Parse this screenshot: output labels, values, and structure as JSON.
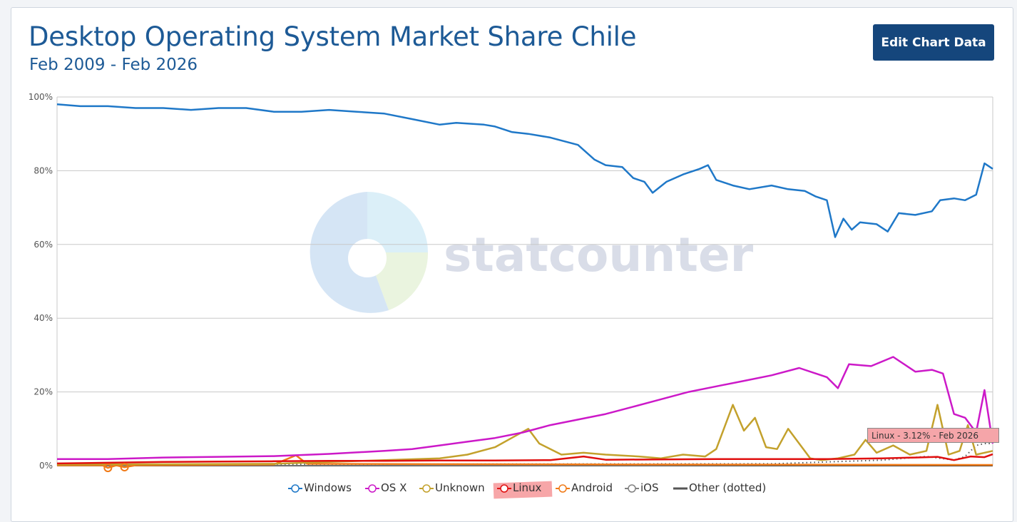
{
  "header": {
    "title": "Desktop Operating System Market Share Chile",
    "subtitle": "Feb 2009 - Feb 2026",
    "edit_button_label": "Edit Chart Data"
  },
  "watermark": {
    "text": "statcounter"
  },
  "tooltip": {
    "text": "Linux - 3.12% - Feb 2026",
    "series": "Linux"
  },
  "colors": {
    "Windows": "#1f78c8",
    "OS X": "#cc19c8",
    "Unknown": "#c3a12c",
    "Linux": "#e01010",
    "Android": "#f07a17",
    "iOS": "#808080",
    "Other (dotted)": "#555555",
    "title": "#1d5a96",
    "button": "#15467c",
    "highlight": "#f5a5a9"
  },
  "chart_data": {
    "type": "line",
    "title": "Desktop Operating System Market Share Chile",
    "subtitle": "Feb 2009 - Feb 2026",
    "ylim": [
      0,
      100
    ],
    "y_ticks": [
      "0%",
      "20%",
      "40%",
      "60%",
      "80%",
      "100%"
    ],
    "x_range": [
      "2009-02",
      "2026-02"
    ],
    "grid": true,
    "legend_position": "bottom",
    "series": [
      {
        "name": "Windows",
        "points": [
          [
            2009.08,
            98
          ],
          [
            2009.5,
            97.5
          ],
          [
            2010,
            97.5
          ],
          [
            2010.5,
            97
          ],
          [
            2011,
            97
          ],
          [
            2011.5,
            96.5
          ],
          [
            2012,
            97
          ],
          [
            2012.5,
            97
          ],
          [
            2013,
            96
          ],
          [
            2013.5,
            96
          ],
          [
            2014,
            96.5
          ],
          [
            2014.5,
            96
          ],
          [
            2015,
            95.5
          ],
          [
            2015.5,
            94
          ],
          [
            2016,
            92.5
          ],
          [
            2016.3,
            93
          ],
          [
            2016.8,
            92.5
          ],
          [
            2017,
            92
          ],
          [
            2017.3,
            90.5
          ],
          [
            2017.6,
            90
          ],
          [
            2018,
            89
          ],
          [
            2018.5,
            87
          ],
          [
            2018.8,
            83
          ],
          [
            2019,
            81.5
          ],
          [
            2019.3,
            81
          ],
          [
            2019.5,
            78
          ],
          [
            2019.7,
            77
          ],
          [
            2019.85,
            74
          ],
          [
            2020.1,
            77
          ],
          [
            2020.4,
            79
          ],
          [
            2020.7,
            80.5
          ],
          [
            2020.85,
            81.5
          ],
          [
            2021,
            77.5
          ],
          [
            2021.3,
            76
          ],
          [
            2021.6,
            75
          ],
          [
            2022,
            76
          ],
          [
            2022.3,
            75
          ],
          [
            2022.6,
            74.5
          ],
          [
            2022.8,
            73
          ],
          [
            2023,
            72
          ],
          [
            2023.15,
            62
          ],
          [
            2023.3,
            67
          ],
          [
            2023.45,
            64
          ],
          [
            2023.6,
            66
          ],
          [
            2023.9,
            65.5
          ],
          [
            2024.1,
            63.5
          ],
          [
            2024.3,
            68.5
          ],
          [
            2024.6,
            68
          ],
          [
            2024.9,
            69
          ],
          [
            2025.05,
            72
          ],
          [
            2025.3,
            72.5
          ],
          [
            2025.5,
            72
          ],
          [
            2025.7,
            73.5
          ],
          [
            2025.85,
            82
          ],
          [
            2026.0,
            80.5
          ]
        ]
      },
      {
        "name": "OS X",
        "points": [
          [
            2009.08,
            1.8
          ],
          [
            2010,
            1.8
          ],
          [
            2011,
            2.2
          ],
          [
            2012,
            2.4
          ],
          [
            2013,
            2.6
          ],
          [
            2014,
            3.2
          ],
          [
            2015,
            4
          ],
          [
            2015.5,
            4.5
          ],
          [
            2016,
            5.5
          ],
          [
            2016.5,
            6.5
          ],
          [
            2017,
            7.5
          ],
          [
            2017.5,
            9
          ],
          [
            2018,
            11
          ],
          [
            2018.5,
            12.5
          ],
          [
            2019,
            14
          ],
          [
            2019.5,
            16
          ],
          [
            2020,
            18
          ],
          [
            2020.5,
            20
          ],
          [
            2021,
            21.5
          ],
          [
            2021.5,
            23
          ],
          [
            2022,
            24.5
          ],
          [
            2022.5,
            26.5
          ],
          [
            2023,
            24
          ],
          [
            2023.2,
            21
          ],
          [
            2023.4,
            27.5
          ],
          [
            2023.8,
            27
          ],
          [
            2024.2,
            29.5
          ],
          [
            2024.6,
            25.5
          ],
          [
            2024.9,
            26
          ],
          [
            2025.1,
            25
          ],
          [
            2025.3,
            14
          ],
          [
            2025.5,
            13
          ],
          [
            2025.7,
            9
          ],
          [
            2025.85,
            20.5
          ],
          [
            2026.0,
            6
          ]
        ]
      },
      {
        "name": "Unknown",
        "points": [
          [
            2009.08,
            0.3
          ],
          [
            2013,
            0.5
          ],
          [
            2014,
            1
          ],
          [
            2015,
            1.5
          ],
          [
            2016,
            2
          ],
          [
            2016.5,
            3
          ],
          [
            2017,
            5
          ],
          [
            2017.3,
            7.5
          ],
          [
            2017.6,
            10
          ],
          [
            2017.8,
            6
          ],
          [
            2018.2,
            3
          ],
          [
            2018.6,
            3.5
          ],
          [
            2019,
            3
          ],
          [
            2019.6,
            2.5
          ],
          [
            2020,
            2
          ],
          [
            2020.4,
            3
          ],
          [
            2020.8,
            2.5
          ],
          [
            2021,
            4.5
          ],
          [
            2021.3,
            16.5
          ],
          [
            2021.5,
            9.5
          ],
          [
            2021.7,
            13
          ],
          [
            2021.9,
            5
          ],
          [
            2022.1,
            4.5
          ],
          [
            2022.3,
            10
          ],
          [
            2022.5,
            6
          ],
          [
            2022.7,
            2
          ],
          [
            2022.9,
            1.5
          ],
          [
            2023.2,
            2
          ],
          [
            2023.5,
            3
          ],
          [
            2023.7,
            7
          ],
          [
            2023.9,
            3.5
          ],
          [
            2024.2,
            5.5
          ],
          [
            2024.5,
            3
          ],
          [
            2024.8,
            4
          ],
          [
            2025.0,
            16.5
          ],
          [
            2025.2,
            3
          ],
          [
            2025.4,
            4
          ],
          [
            2025.55,
            11
          ],
          [
            2025.7,
            3
          ],
          [
            2026.0,
            4
          ]
        ]
      },
      {
        "name": "Linux",
        "points": [
          [
            2009.08,
            0.6
          ],
          [
            2010,
            0.8
          ],
          [
            2011,
            1
          ],
          [
            2012,
            1.1
          ],
          [
            2013,
            1.2
          ],
          [
            2014,
            1.3
          ],
          [
            2015,
            1.3
          ],
          [
            2016,
            1.4
          ],
          [
            2017,
            1.4
          ],
          [
            2018,
            1.5
          ],
          [
            2018.6,
            2.5
          ],
          [
            2019,
            1.6
          ],
          [
            2020,
            1.7
          ],
          [
            2021,
            1.8
          ],
          [
            2022,
            1.8
          ],
          [
            2023,
            1.8
          ],
          [
            2024,
            2
          ],
          [
            2024.6,
            2.2
          ],
          [
            2025,
            2.4
          ],
          [
            2025.3,
            1.5
          ],
          [
            2025.6,
            2.5
          ],
          [
            2025.85,
            2.3
          ],
          [
            2026.0,
            3.12
          ]
        ]
      },
      {
        "name": "Android",
        "points": [
          [
            2009.08,
            0.1
          ],
          [
            2009.9,
            0.1
          ],
          [
            2010,
            -0.6
          ],
          [
            2010.15,
            0.1
          ],
          [
            2010.3,
            -0.4
          ],
          [
            2010.5,
            0.1
          ],
          [
            2013,
            0.3
          ],
          [
            2013.4,
            2.8
          ],
          [
            2013.6,
            0.5
          ],
          [
            2016,
            0.4
          ],
          [
            2020,
            0.3
          ],
          [
            2026.0,
            0.2
          ]
        ]
      },
      {
        "name": "iOS",
        "points": [
          [
            2009.08,
            0
          ],
          [
            2015,
            0.05
          ],
          [
            2020,
            0.05
          ],
          [
            2024,
            0.1
          ],
          [
            2026.0,
            0.2
          ]
        ]
      },
      {
        "name": "Other (dotted)",
        "points": [
          [
            2009.08,
            0.3
          ],
          [
            2022,
            0.5
          ],
          [
            2023,
            1
          ],
          [
            2024,
            1.5
          ],
          [
            2024.8,
            2.5
          ],
          [
            2025.3,
            1.5
          ],
          [
            2025.5,
            2.5
          ],
          [
            2025.7,
            5.5
          ],
          [
            2025.85,
            6
          ],
          [
            2026.0,
            6
          ]
        ]
      }
    ]
  },
  "legend": {
    "items": [
      {
        "label": "Windows"
      },
      {
        "label": "OS X"
      },
      {
        "label": "Unknown"
      },
      {
        "label": "Linux",
        "highlighted": true
      },
      {
        "label": "Android"
      },
      {
        "label": "iOS"
      },
      {
        "label": "Other (dotted)"
      }
    ]
  }
}
